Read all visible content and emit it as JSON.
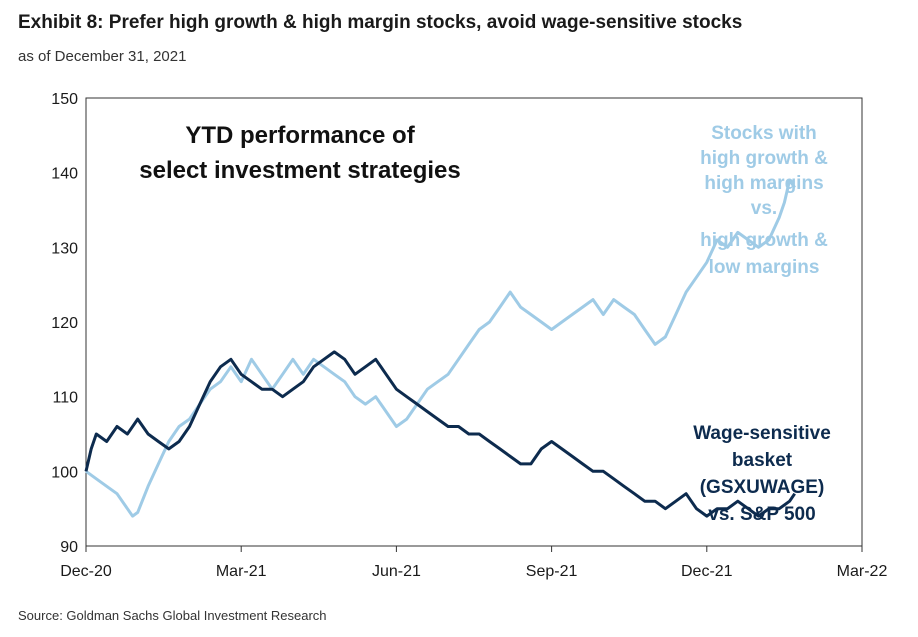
{
  "header": {
    "title": "Exhibit 8: Prefer high growth & high margin stocks, avoid wage-sensitive stocks",
    "subtitle": "as of December 31, 2021"
  },
  "footer": {
    "source": "Source: Goldman Sachs Global Investment Research"
  },
  "chart_data": {
    "type": "line",
    "title": "YTD performance of select investment strategies",
    "title_lines": [
      "YTD performance of",
      "select investment strategies"
    ],
    "xlabel": "",
    "ylabel": "",
    "ylim": [
      90,
      150
    ],
    "xlim": [
      0,
      15
    ],
    "y_ticks": [
      90,
      100,
      110,
      120,
      130,
      140,
      150
    ],
    "x_ticks": [
      {
        "value": 0,
        "label": "Dec-20"
      },
      {
        "value": 3,
        "label": "Mar-21"
      },
      {
        "value": 6,
        "label": "Jun-21"
      },
      {
        "value": 9,
        "label": "Sep-21"
      },
      {
        "value": 12,
        "label": "Dec-21"
      },
      {
        "value": 15,
        "label": "Mar-22"
      }
    ],
    "grid": false,
    "series": [
      {
        "name": "Stocks with high growth & high margins vs. high growth & low margins",
        "label_lines": [
          "Stocks with",
          "high growth &",
          "high margins",
          "vs.",
          "high growth &",
          "low margins"
        ],
        "color": "#9fcbe6",
        "points": [
          [
            0.0,
            100
          ],
          [
            0.2,
            99
          ],
          [
            0.4,
            98
          ],
          [
            0.6,
            97
          ],
          [
            0.8,
            95
          ],
          [
            0.9,
            94
          ],
          [
            1.0,
            94.5
          ],
          [
            1.2,
            98
          ],
          [
            1.4,
            101
          ],
          [
            1.6,
            104
          ],
          [
            1.8,
            106
          ],
          [
            2.0,
            107
          ],
          [
            2.2,
            109
          ],
          [
            2.4,
            111
          ],
          [
            2.6,
            112
          ],
          [
            2.8,
            114
          ],
          [
            3.0,
            112
          ],
          [
            3.2,
            115
          ],
          [
            3.4,
            113
          ],
          [
            3.6,
            111
          ],
          [
            3.8,
            113
          ],
          [
            4.0,
            115
          ],
          [
            4.2,
            113
          ],
          [
            4.4,
            115
          ],
          [
            4.6,
            114
          ],
          [
            4.8,
            113
          ],
          [
            5.0,
            112
          ],
          [
            5.2,
            110
          ],
          [
            5.4,
            109
          ],
          [
            5.6,
            110
          ],
          [
            5.8,
            108
          ],
          [
            6.0,
            106
          ],
          [
            6.2,
            107
          ],
          [
            6.4,
            109
          ],
          [
            6.6,
            111
          ],
          [
            6.8,
            112
          ],
          [
            7.0,
            113
          ],
          [
            7.2,
            115
          ],
          [
            7.4,
            117
          ],
          [
            7.6,
            119
          ],
          [
            7.8,
            120
          ],
          [
            8.0,
            122
          ],
          [
            8.2,
            124
          ],
          [
            8.4,
            122
          ],
          [
            8.6,
            121
          ],
          [
            8.8,
            120
          ],
          [
            9.0,
            119
          ],
          [
            9.2,
            120
          ],
          [
            9.4,
            121
          ],
          [
            9.6,
            122
          ],
          [
            9.8,
            123
          ],
          [
            10.0,
            121
          ],
          [
            10.2,
            123
          ],
          [
            10.4,
            122
          ],
          [
            10.6,
            121
          ],
          [
            10.8,
            119
          ],
          [
            11.0,
            117
          ],
          [
            11.2,
            118
          ],
          [
            11.4,
            121
          ],
          [
            11.6,
            124
          ],
          [
            11.8,
            126
          ],
          [
            12.0,
            128
          ],
          [
            12.2,
            131
          ],
          [
            12.4,
            130
          ],
          [
            12.6,
            132
          ],
          [
            12.8,
            131
          ],
          [
            13.0,
            130
          ],
          [
            13.2,
            131
          ],
          [
            13.4,
            134
          ],
          [
            13.5,
            136
          ],
          [
            13.6,
            139
          ],
          [
            13.7,
            138
          ]
        ]
      },
      {
        "name": "Wage-sensitive basket (GSXUWAGE) vs. S&P 500",
        "label_lines": [
          "Wage-sensitive",
          "basket",
          "(GSXUWAGE)",
          "vs. S&P 500"
        ],
        "color": "#0d2b4e",
        "points": [
          [
            0.0,
            100
          ],
          [
            0.1,
            103
          ],
          [
            0.2,
            105
          ],
          [
            0.4,
            104
          ],
          [
            0.6,
            106
          ],
          [
            0.8,
            105
          ],
          [
            1.0,
            107
          ],
          [
            1.2,
            105
          ],
          [
            1.4,
            104
          ],
          [
            1.6,
            103
          ],
          [
            1.8,
            104
          ],
          [
            2.0,
            106
          ],
          [
            2.2,
            109
          ],
          [
            2.4,
            112
          ],
          [
            2.6,
            114
          ],
          [
            2.8,
            115
          ],
          [
            3.0,
            113
          ],
          [
            3.2,
            112
          ],
          [
            3.4,
            111
          ],
          [
            3.6,
            111
          ],
          [
            3.8,
            110
          ],
          [
            4.0,
            111
          ],
          [
            4.2,
            112
          ],
          [
            4.4,
            114
          ],
          [
            4.6,
            115
          ],
          [
            4.8,
            116
          ],
          [
            5.0,
            115
          ],
          [
            5.2,
            113
          ],
          [
            5.4,
            114
          ],
          [
            5.6,
            115
          ],
          [
            5.8,
            113
          ],
          [
            6.0,
            111
          ],
          [
            6.2,
            110
          ],
          [
            6.4,
            109
          ],
          [
            6.6,
            108
          ],
          [
            6.8,
            107
          ],
          [
            7.0,
            106
          ],
          [
            7.2,
            106
          ],
          [
            7.4,
            105
          ],
          [
            7.6,
            105
          ],
          [
            7.8,
            104
          ],
          [
            8.0,
            103
          ],
          [
            8.2,
            102
          ],
          [
            8.4,
            101
          ],
          [
            8.6,
            101
          ],
          [
            8.8,
            103
          ],
          [
            9.0,
            104
          ],
          [
            9.2,
            103
          ],
          [
            9.4,
            102
          ],
          [
            9.6,
            101
          ],
          [
            9.8,
            100
          ],
          [
            10.0,
            100
          ],
          [
            10.2,
            99
          ],
          [
            10.4,
            98
          ],
          [
            10.6,
            97
          ],
          [
            10.8,
            96
          ],
          [
            11.0,
            96
          ],
          [
            11.2,
            95
          ],
          [
            11.4,
            96
          ],
          [
            11.6,
            97
          ],
          [
            11.8,
            95
          ],
          [
            12.0,
            94
          ],
          [
            12.2,
            95
          ],
          [
            12.4,
            95
          ],
          [
            12.6,
            96
          ],
          [
            12.8,
            95
          ],
          [
            13.0,
            94
          ],
          [
            13.2,
            95
          ],
          [
            13.4,
            95
          ],
          [
            13.6,
            96
          ],
          [
            13.7,
            97
          ]
        ]
      }
    ]
  }
}
